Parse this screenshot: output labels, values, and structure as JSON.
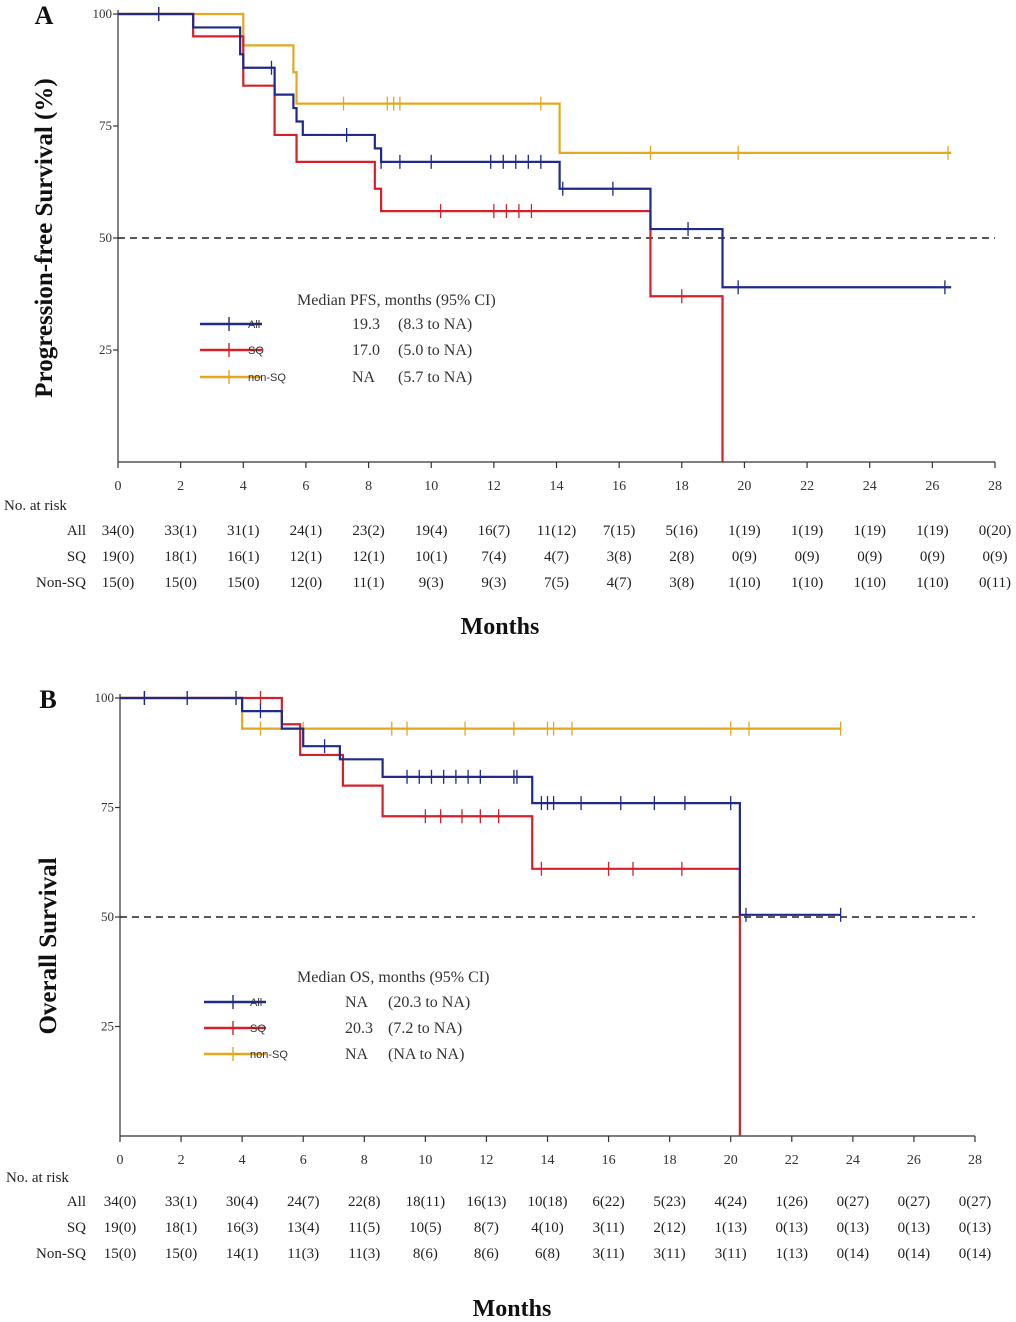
{
  "colors": {
    "All": "#1f2a8a",
    "SQ": "#d4202a",
    "non-SQ": "#e3a81f"
  },
  "chart_data": [
    {
      "type": "line",
      "panel": "A",
      "title": "",
      "ylabel": "Progression-free Survival  (%)",
      "xlabel": "Months",
      "xlim": [
        0,
        28
      ],
      "ylim": [
        0,
        100
      ],
      "xticks": [
        0,
        2,
        4,
        6,
        8,
        10,
        12,
        14,
        16,
        18,
        20,
        22,
        24,
        26,
        28
      ],
      "yticks": [
        25,
        50,
        75,
        100
      ],
      "reference_line": 50,
      "series": [
        {
          "name": "All",
          "steps": [
            [
              0,
              100
            ],
            [
              2.4,
              97
            ],
            [
              3.9,
              91
            ],
            [
              4.0,
              88
            ],
            [
              5.0,
              82
            ],
            [
              5.6,
              79
            ],
            [
              5.7,
              76
            ],
            [
              5.9,
              73
            ],
            [
              8.2,
              70
            ],
            [
              8.4,
              67
            ],
            [
              14.1,
              61
            ],
            [
              17.0,
              52
            ],
            [
              19.3,
              39
            ],
            [
              26.6,
              39
            ]
          ],
          "censors": [
            [
              1.3,
              100
            ],
            [
              4.9,
              88
            ],
            [
              7.3,
              73
            ],
            [
              8.4,
              67
            ],
            [
              9.0,
              67
            ],
            [
              10.0,
              67
            ],
            [
              11.9,
              67
            ],
            [
              12.3,
              67
            ],
            [
              12.7,
              67
            ],
            [
              13.1,
              67
            ],
            [
              13.5,
              67
            ],
            [
              14.2,
              61
            ],
            [
              15.8,
              61
            ],
            [
              18.2,
              52
            ],
            [
              19.8,
              39
            ],
            [
              26.4,
              39
            ]
          ]
        },
        {
          "name": "SQ",
          "steps": [
            [
              0,
              100
            ],
            [
              2.4,
              95
            ],
            [
              4.0,
              84
            ],
            [
              5.0,
              73
            ],
            [
              5.7,
              67
            ],
            [
              8.2,
              61
            ],
            [
              8.4,
              56
            ],
            [
              17.0,
              37
            ],
            [
              19.3,
              0
            ]
          ],
          "censors": [
            [
              1.3,
              100
            ],
            [
              10.3,
              56
            ],
            [
              12.0,
              56
            ],
            [
              12.4,
              56
            ],
            [
              12.8,
              56
            ],
            [
              13.2,
              56
            ],
            [
              18.0,
              37
            ]
          ]
        },
        {
          "name": "non-SQ",
          "steps": [
            [
              0,
              100
            ],
            [
              4.0,
              93
            ],
            [
              5.6,
              87
            ],
            [
              5.7,
              80
            ],
            [
              14.1,
              69
            ],
            [
              26.6,
              69
            ]
          ],
          "censors": [
            [
              1.3,
              100
            ],
            [
              7.2,
              80
            ],
            [
              8.6,
              80
            ],
            [
              8.8,
              80
            ],
            [
              9.0,
              80
            ],
            [
              13.5,
              80
            ],
            [
              17.0,
              69
            ],
            [
              19.8,
              69
            ],
            [
              26.5,
              69
            ]
          ]
        }
      ],
      "legend": {
        "title": "Median PFS, months (95% CI)",
        "entries": [
          {
            "name": "All",
            "label": "All",
            "median": "19.3",
            "ci": "(8.3 to NA)"
          },
          {
            "name": "SQ",
            "label": "SQ",
            "median": "17.0",
            "ci": "(5.0 to NA)"
          },
          {
            "name": "non-SQ",
            "label": "non-SQ",
            "median": "NA",
            "ci": "(5.7 to NA)"
          }
        ]
      },
      "risk_table": {
        "header": "No. at risk",
        "rows": [
          {
            "label": "All",
            "values": [
              "34(0)",
              "33(1)",
              "31(1)",
              "24(1)",
              "23(2)",
              "19(4)",
              "16(7)",
              "11(12)",
              "7(15)",
              "5(16)",
              "1(19)",
              "1(19)",
              "1(19)",
              "1(19)",
              "0(20)"
            ]
          },
          {
            "label": "SQ",
            "values": [
              "19(0)",
              "18(1)",
              "16(1)",
              "12(1)",
              "12(1)",
              "10(1)",
              "7(4)",
              "4(7)",
              "3(8)",
              "2(8)",
              "0(9)",
              "0(9)",
              "0(9)",
              "0(9)",
              "0(9)"
            ]
          },
          {
            "label": "Non-SQ",
            "values": [
              "15(0)",
              "15(0)",
              "15(0)",
              "12(0)",
              "11(1)",
              "9(3)",
              "9(3)",
              "7(5)",
              "4(7)",
              "3(8)",
              "1(10)",
              "1(10)",
              "1(10)",
              "1(10)",
              "0(11)"
            ]
          }
        ]
      }
    },
    {
      "type": "line",
      "panel": "B",
      "title": "",
      "ylabel": "Overall Survival",
      "xlabel": "Months",
      "xlim": [
        0,
        28
      ],
      "ylim": [
        0,
        100
      ],
      "xticks": [
        0,
        2,
        4,
        6,
        8,
        10,
        12,
        14,
        16,
        18,
        20,
        22,
        24,
        26,
        28
      ],
      "yticks": [
        25,
        50,
        75,
        100
      ],
      "reference_line": 50,
      "series": [
        {
          "name": "All",
          "steps": [
            [
              0,
              100
            ],
            [
              4.0,
              97
            ],
            [
              5.3,
              93
            ],
            [
              6.0,
              89
            ],
            [
              7.2,
              86
            ],
            [
              8.6,
              82
            ],
            [
              13.5,
              76
            ],
            [
              20.3,
              50.5
            ],
            [
              23.6,
              50.5
            ]
          ],
          "censors": [
            [
              0.8,
              100
            ],
            [
              2.2,
              100
            ],
            [
              3.8,
              100
            ],
            [
              4.6,
              97
            ],
            [
              6.7,
              89
            ],
            [
              9.4,
              82
            ],
            [
              9.8,
              82
            ],
            [
              10.2,
              82
            ],
            [
              10.6,
              82
            ],
            [
              11.0,
              82
            ],
            [
              11.4,
              82
            ],
            [
              11.8,
              82
            ],
            [
              12.9,
              82
            ],
            [
              13.0,
              82
            ],
            [
              13.8,
              76
            ],
            [
              14.0,
              76
            ],
            [
              14.2,
              76
            ],
            [
              15.1,
              76
            ],
            [
              16.4,
              76
            ],
            [
              17.5,
              76
            ],
            [
              18.5,
              76
            ],
            [
              20.0,
              76
            ],
            [
              20.5,
              50.5
            ],
            [
              23.6,
              50.5
            ]
          ]
        },
        {
          "name": "SQ",
          "steps": [
            [
              0,
              100
            ],
            [
              5.3,
              94
            ],
            [
              5.9,
              87
            ],
            [
              7.3,
              80
            ],
            [
              8.6,
              73
            ],
            [
              13.5,
              61
            ],
            [
              20.3,
              0
            ]
          ],
          "censors": [
            [
              0.8,
              100
            ],
            [
              4.6,
              100
            ],
            [
              10.0,
              73
            ],
            [
              10.5,
              73
            ],
            [
              11.2,
              73
            ],
            [
              11.8,
              73
            ],
            [
              12.4,
              73
            ],
            [
              13.8,
              61
            ],
            [
              16.0,
              61
            ],
            [
              16.8,
              61
            ],
            [
              18.4,
              61
            ]
          ]
        },
        {
          "name": "non-SQ",
          "steps": [
            [
              0,
              100
            ],
            [
              4.0,
              93
            ],
            [
              23.6,
              93
            ]
          ],
          "censors": [
            [
              0.8,
              100
            ],
            [
              2.2,
              100
            ],
            [
              3.8,
              100
            ],
            [
              4.6,
              93
            ],
            [
              6.0,
              93
            ],
            [
              8.9,
              93
            ],
            [
              9.4,
              93
            ],
            [
              11.3,
              93
            ],
            [
              12.9,
              93
            ],
            [
              14.0,
              93
            ],
            [
              14.2,
              93
            ],
            [
              14.8,
              93
            ],
            [
              20.0,
              93
            ],
            [
              20.6,
              93
            ],
            [
              23.6,
              93
            ]
          ]
        }
      ],
      "legend": {
        "title": "Median OS, months (95% CI)",
        "entries": [
          {
            "name": "All",
            "label": "All",
            "median": "NA",
            "ci": "(20.3 to NA)"
          },
          {
            "name": "SQ",
            "label": "SQ",
            "median": "20.3",
            "ci": "(7.2 to NA)"
          },
          {
            "name": "non-SQ",
            "label": "non-SQ",
            "median": "NA",
            "ci": "(NA to NA)"
          }
        ]
      },
      "risk_table": {
        "header": "No. at risk",
        "rows": [
          {
            "label": "All",
            "values": [
              "34(0)",
              "33(1)",
              "30(4)",
              "24(7)",
              "22(8)",
              "18(11)",
              "16(13)",
              "10(18)",
              "6(22)",
              "5(23)",
              "4(24)",
              "1(26)",
              "0(27)",
              "0(27)",
              "0(27)"
            ]
          },
          {
            "label": "SQ",
            "values": [
              "19(0)",
              "18(1)",
              "16(3)",
              "13(4)",
              "11(5)",
              "10(5)",
              "8(7)",
              "4(10)",
              "3(11)",
              "2(12)",
              "1(13)",
              "0(13)",
              "0(13)",
              "0(13)",
              "0(13)"
            ]
          },
          {
            "label": "Non-SQ",
            "values": [
              "15(0)",
              "15(0)",
              "14(1)",
              "11(3)",
              "11(3)",
              "8(6)",
              "8(6)",
              "6(8)",
              "3(11)",
              "3(11)",
              "3(11)",
              "1(13)",
              "0(14)",
              "0(14)",
              "0(14)"
            ]
          }
        ]
      }
    }
  ]
}
